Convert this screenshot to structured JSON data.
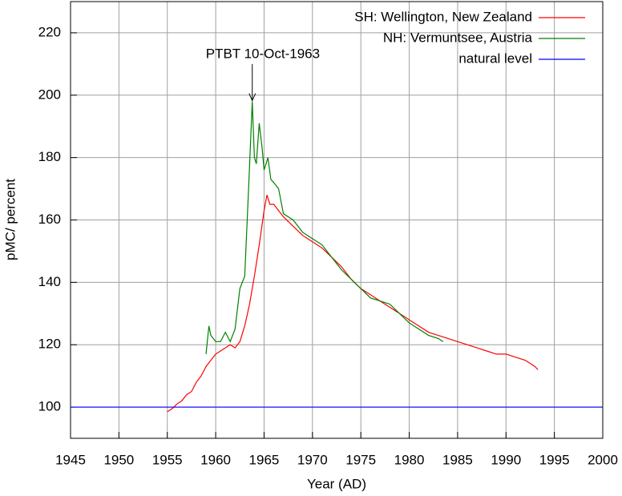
{
  "chart_data": {
    "type": "line",
    "xlabel": "Year (AD)",
    "ylabel": "pMC/ percent",
    "xlim": [
      1945,
      2000
    ],
    "xticks": [
      1945,
      1950,
      1955,
      1960,
      1965,
      1970,
      1975,
      1980,
      1985,
      1990,
      1995,
      2000
    ],
    "ylim": [
      90,
      230
    ],
    "yticks": [
      100,
      120,
      140,
      160,
      180,
      200,
      220
    ],
    "grid": true,
    "legend": "top-right",
    "annotation": {
      "text": "PTBT 10-Oct-1963",
      "x": 1963.78,
      "y": 198
    },
    "series": [
      {
        "name": "SH: Wellington, New Zealand",
        "color": "#ff0000",
        "x": [
          1955,
          1955.5,
          1956,
          1956.5,
          1957,
          1957.5,
          1958,
          1958.5,
          1959,
          1959.5,
          1960,
          1960.5,
          1961,
          1961.5,
          1962,
          1962.5,
          1963,
          1963.5,
          1964,
          1964.5,
          1965,
          1965.3,
          1965.6,
          1966,
          1967,
          1968,
          1969,
          1970,
          1971,
          1972,
          1973,
          1974,
          1975,
          1976,
          1977,
          1978,
          1979,
          1980,
          1981,
          1982,
          1983,
          1984,
          1985,
          1986,
          1987,
          1988,
          1989,
          1990,
          1991,
          1992,
          1993,
          1993.3
        ],
        "values": [
          98.5,
          99.5,
          101,
          102,
          104,
          105,
          108,
          110,
          113,
          115,
          117,
          118,
          119,
          120,
          119,
          121,
          126,
          133,
          142,
          152,
          163,
          168,
          165,
          165,
          161,
          158,
          155,
          153,
          151,
          148,
          145,
          141,
          138,
          136,
          134,
          132,
          130,
          128,
          126,
          124,
          123,
          122,
          121,
          120,
          119,
          118,
          117,
          117,
          116,
          115,
          113,
          112
        ]
      },
      {
        "name": "NH: Vermuntsee, Austria",
        "color": "#008000",
        "x": [
          1959,
          1959.3,
          1959.5,
          1960,
          1960.5,
          1961,
          1961.5,
          1962,
          1962.5,
          1963,
          1963.4,
          1963.78,
          1964,
          1964.2,
          1964.5,
          1964.8,
          1965,
          1965.4,
          1965.7,
          1966,
          1966.5,
          1967,
          1968,
          1969,
          1970,
          1971,
          1972,
          1973,
          1974,
          1975,
          1976,
          1977,
          1978,
          1979,
          1980,
          1981,
          1982,
          1983,
          1983.5
        ],
        "values": [
          117,
          126,
          123,
          121,
          121,
          124,
          121,
          125,
          138,
          142,
          170,
          198,
          180,
          178,
          191,
          183,
          176,
          180,
          173,
          172,
          170,
          162,
          160,
          156,
          154,
          152,
          148,
          144,
          141,
          138,
          135,
          134,
          133,
          130,
          127,
          125,
          123,
          122,
          121
        ]
      },
      {
        "name": "natural level",
        "color": "#0000ff",
        "x": [
          1945,
          2000
        ],
        "values": [
          100,
          100
        ]
      }
    ]
  }
}
